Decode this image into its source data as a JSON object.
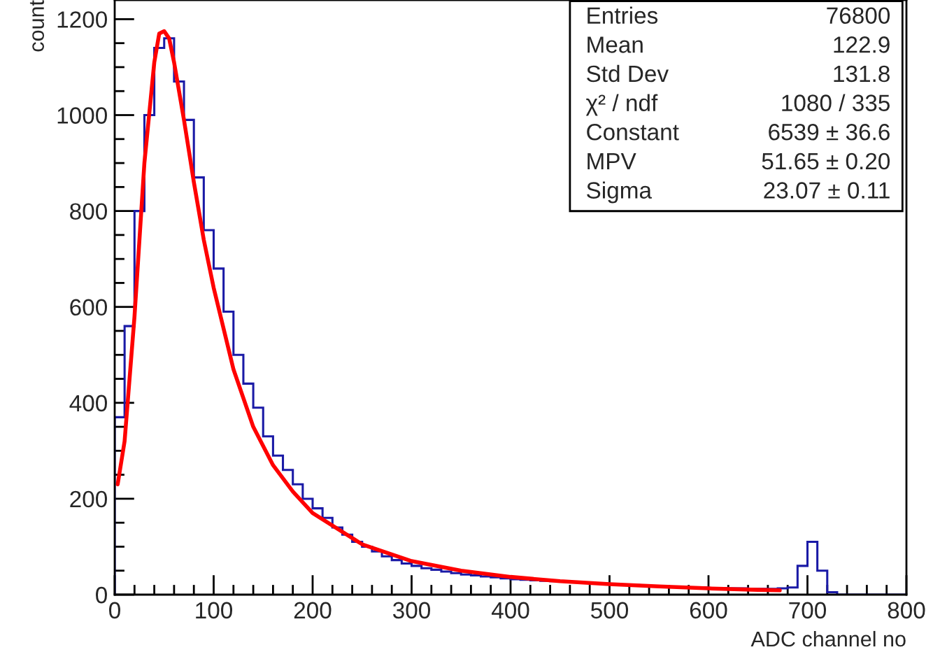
{
  "chart_data": {
    "type": "histogram",
    "xlabel": "ADC channel no",
    "ylabel": "count",
    "xlim": [
      0,
      800
    ],
    "ylim": [
      0,
      1240
    ],
    "xticks": [
      0,
      100,
      200,
      300,
      400,
      500,
      600,
      700,
      800
    ],
    "yticks": [
      0,
      200,
      400,
      600,
      800,
      1000,
      1200
    ],
    "grid": false,
    "legend": false,
    "series": [
      {
        "color": "#1a1aa6",
        "bins": [
          0,
          10,
          20,
          30,
          40,
          50,
          60,
          70,
          80,
          90,
          100,
          110,
          120,
          130,
          140,
          150,
          160,
          170,
          180,
          190,
          200,
          210,
          220,
          230,
          240,
          250,
          260,
          270,
          280,
          290,
          300,
          310,
          320,
          330,
          340,
          350,
          360,
          370,
          380,
          390,
          400,
          410,
          420,
          430,
          440,
          450,
          460,
          470,
          480,
          490,
          500,
          510,
          520,
          530,
          540,
          550,
          560,
          570,
          580,
          590,
          600,
          610,
          620,
          630,
          640,
          650,
          660,
          670,
          680,
          690,
          700,
          710,
          720,
          730,
          740,
          750,
          760,
          770,
          780,
          790,
          800
        ],
        "values": [
          370,
          560,
          800,
          1000,
          1140,
          1160,
          1070,
          990,
          870,
          760,
          680,
          590,
          500,
          440,
          390,
          330,
          290,
          260,
          230,
          200,
          180,
          160,
          140,
          125,
          110,
          100,
          90,
          80,
          72,
          65,
          60,
          55,
          52,
          48,
          45,
          42,
          40,
          38,
          36,
          34,
          32,
          31,
          30,
          29,
          28,
          27,
          26,
          25,
          24,
          23,
          22,
          21,
          20,
          19,
          18,
          17,
          16,
          16,
          15,
          15,
          14,
          14,
          13,
          13,
          12,
          12,
          12,
          13,
          15,
          60,
          110,
          50,
          5,
          0,
          0,
          0,
          0,
          0,
          0,
          0
        ]
      },
      {
        "type": "line",
        "color": "#ff0000",
        "x": [
          3,
          10,
          20,
          30,
          40,
          45,
          50,
          55,
          60,
          70,
          80,
          90,
          100,
          120,
          140,
          160,
          180,
          200,
          250,
          300,
          350,
          400,
          450,
          500,
          550,
          600,
          650,
          672
        ],
        "values": [
          230,
          320,
          580,
          900,
          1110,
          1170,
          1175,
          1160,
          1110,
          990,
          860,
          740,
          640,
          470,
          350,
          270,
          215,
          170,
          105,
          70,
          50,
          37,
          28,
          22,
          17,
          13,
          10,
          9
        ]
      }
    ],
    "annotations": [
      "Entries",
      "76800",
      "Mean",
      "122.9",
      "Std Dev",
      "131.8",
      "χ² / ndf",
      "1080 / 335",
      "Constant",
      "6539 ± 36.6",
      "MPV",
      "51.65 ± 0.20",
      "Sigma",
      "23.07 ± 0.11"
    ]
  }
}
